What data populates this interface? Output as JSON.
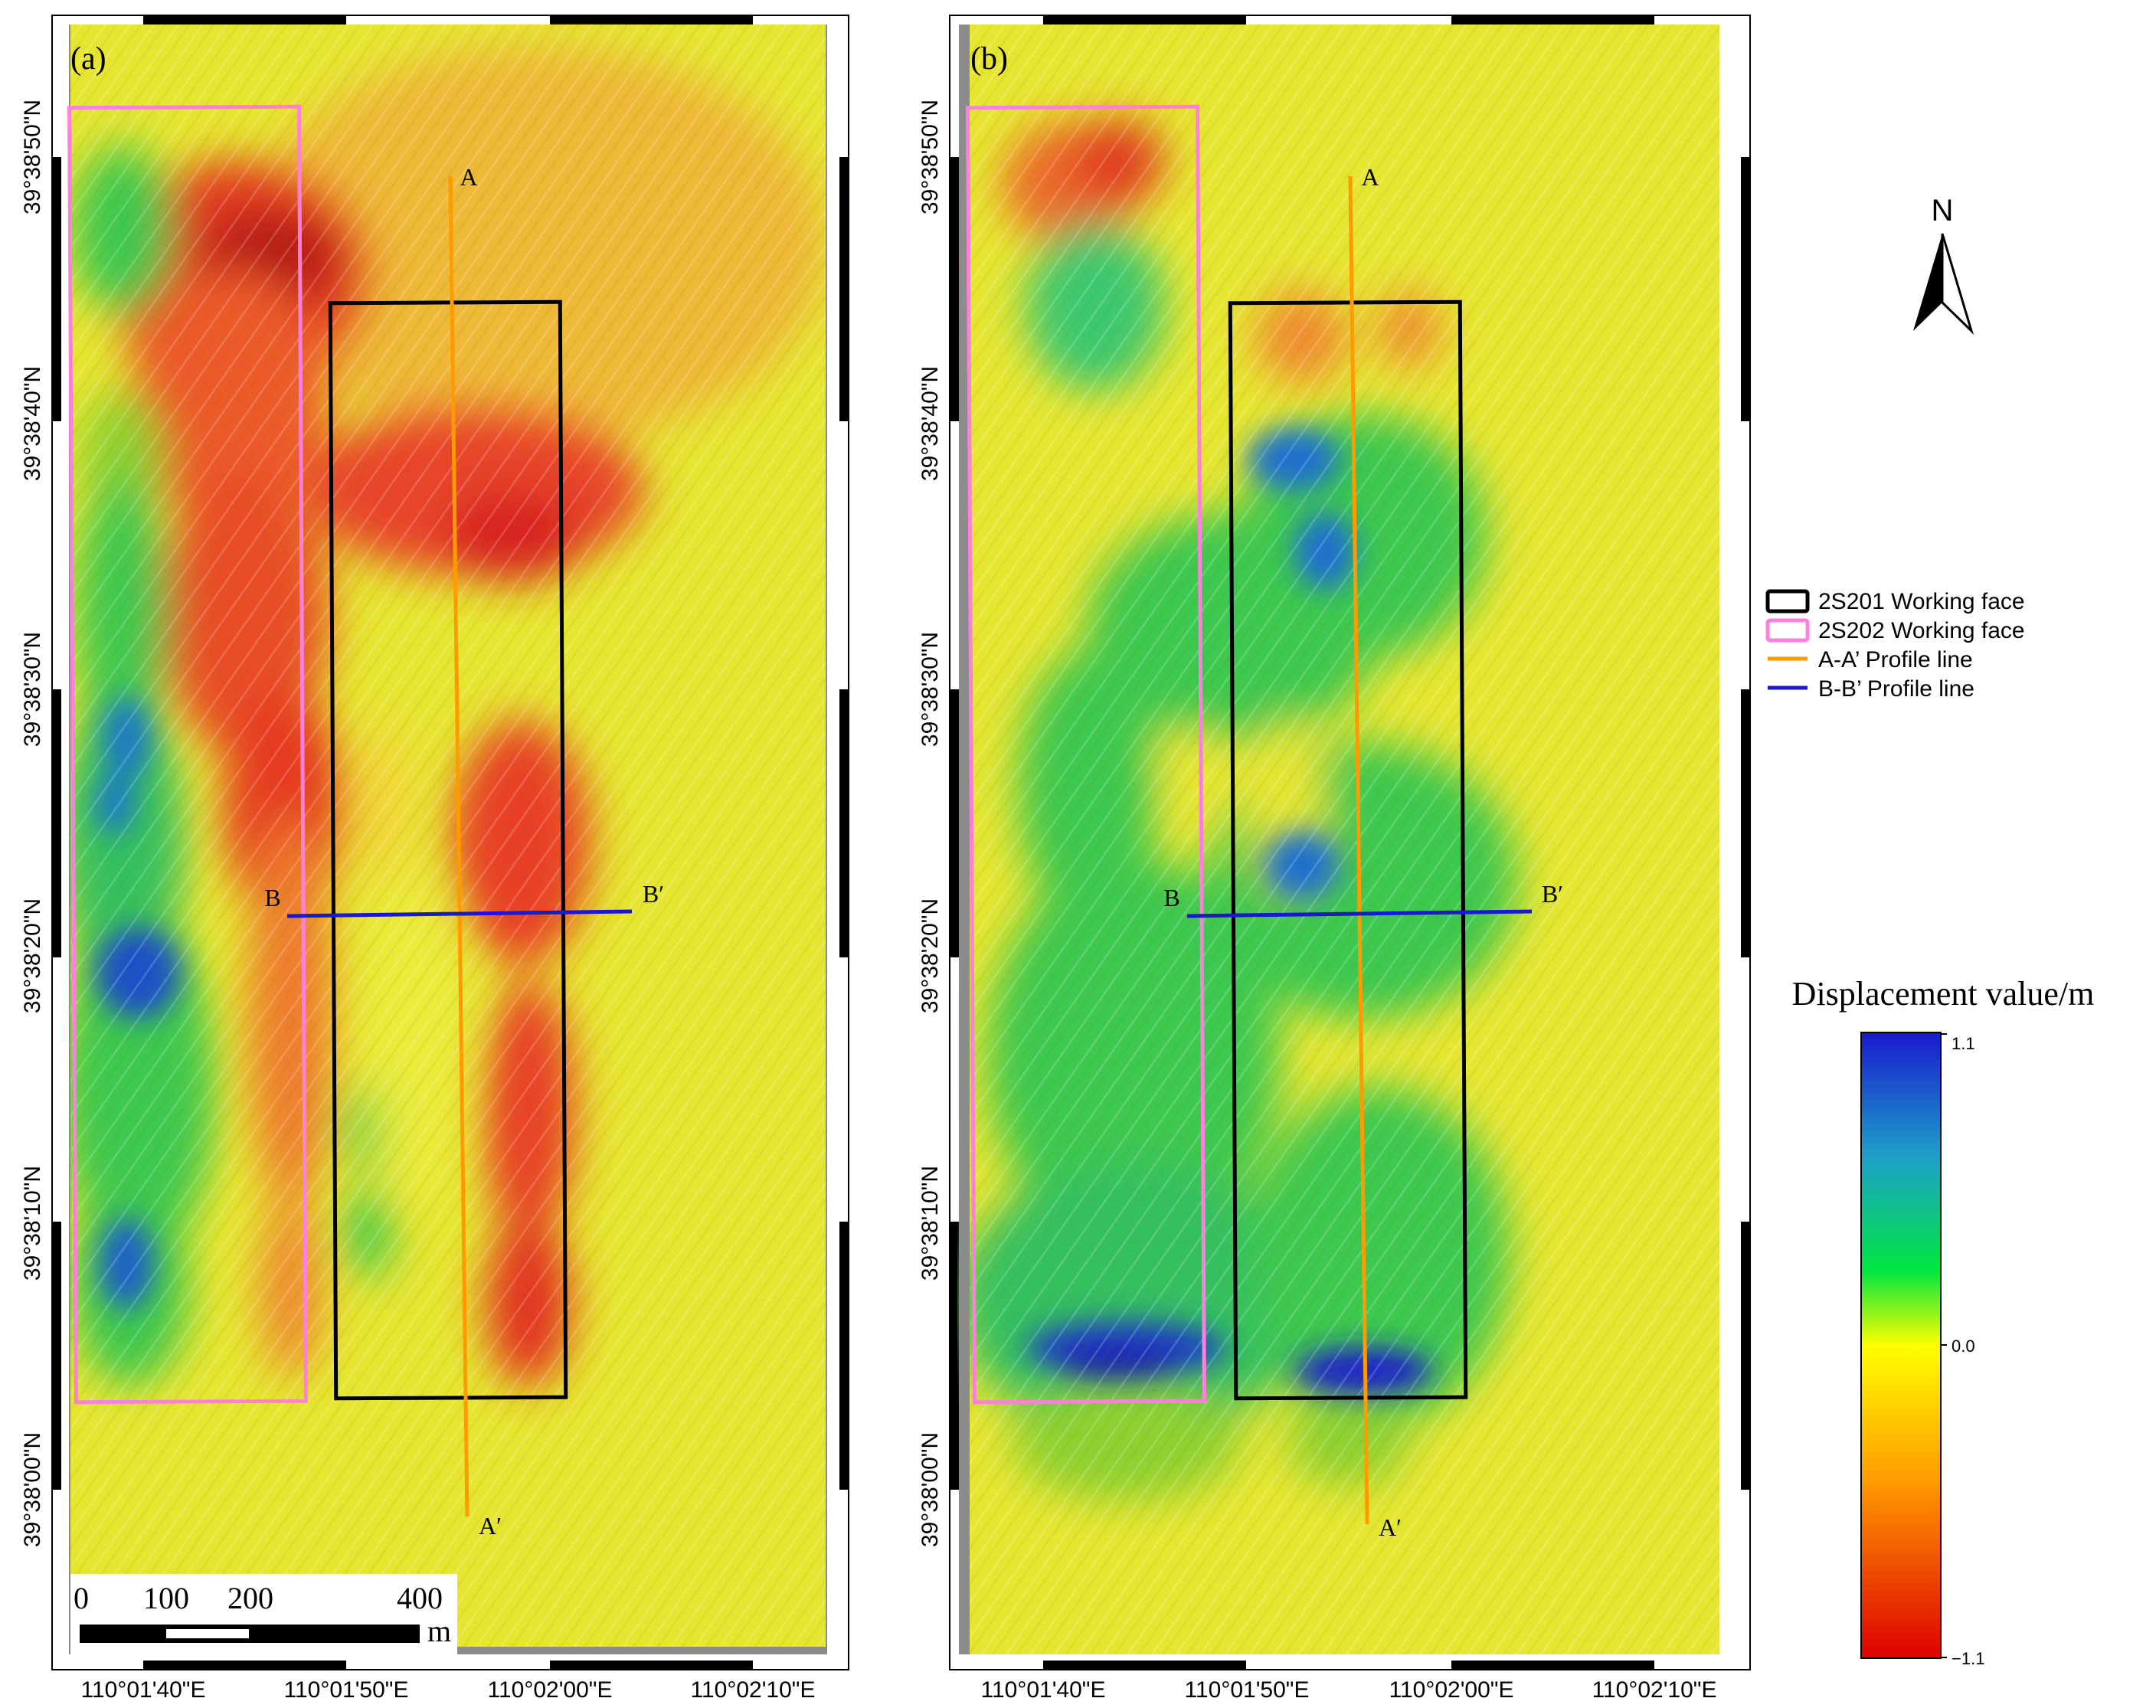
{
  "panels": [
    {
      "id": "a",
      "label": "(a)",
      "lat_labels": [
        "39°38'50\"N",
        "39°38'40\"N",
        "39°38'30\"N",
        "39°38'20\"N",
        "39°38'10\"N",
        "39°38'00\"N"
      ],
      "lon_labels": [
        "110°01'40\"E",
        "110°01'50\"E",
        "110°02'00\"E",
        "110°02'10\"E"
      ],
      "profile_labels": {
        "a_start": "A",
        "a_end": "A′",
        "b_start": "B",
        "b_end": "B′"
      }
    },
    {
      "id": "b",
      "label": "(b)",
      "lat_labels": [
        "39°38'50\"N",
        "39°38'40\"N",
        "39°38'30\"N",
        "39°38'20\"N",
        "39°38'10\"N",
        "39°38'00\"N"
      ],
      "lon_labels": [
        "110°01'40\"E",
        "110°01'50\"E",
        "110°02'00\"E",
        "110°02'10\"E"
      ],
      "profile_labels": {
        "a_start": "A",
        "a_end": "A′",
        "b_start": "B",
        "b_end": "B′"
      }
    }
  ],
  "scale_bar": {
    "ticks": [
      "0",
      "100",
      "200",
      "400"
    ],
    "unit": "m"
  },
  "north_arrow": {
    "label": "N"
  },
  "legend": {
    "items": [
      {
        "label": "2S201 Working face",
        "symbol": "box",
        "color": "#000000"
      },
      {
        "label": "2S202 Working face",
        "symbol": "box",
        "color": "#ff7fdc"
      },
      {
        "label": "A-A’ Profile line",
        "symbol": "line",
        "color": "#ff9a00"
      },
      {
        "label": "B-B’ Profile line",
        "symbol": "line",
        "color": "#1a1acc"
      }
    ]
  },
  "colorbar": {
    "title": "Displacement value/m",
    "max_label": "1.1",
    "mid_label": "0.0",
    "min_label": "−1.1",
    "range": [
      -1.1,
      1.1
    ],
    "stops": [
      "#1a1acc",
      "#1ea0c8",
      "#00e640",
      "#ffff00",
      "#ff9900",
      "#dd0000"
    ]
  },
  "colors": {
    "background_yellow": "#e6e632",
    "red_zone": "#e83c28",
    "green_zone": "#3cc850",
    "blue_zone": "#1e50c8"
  }
}
